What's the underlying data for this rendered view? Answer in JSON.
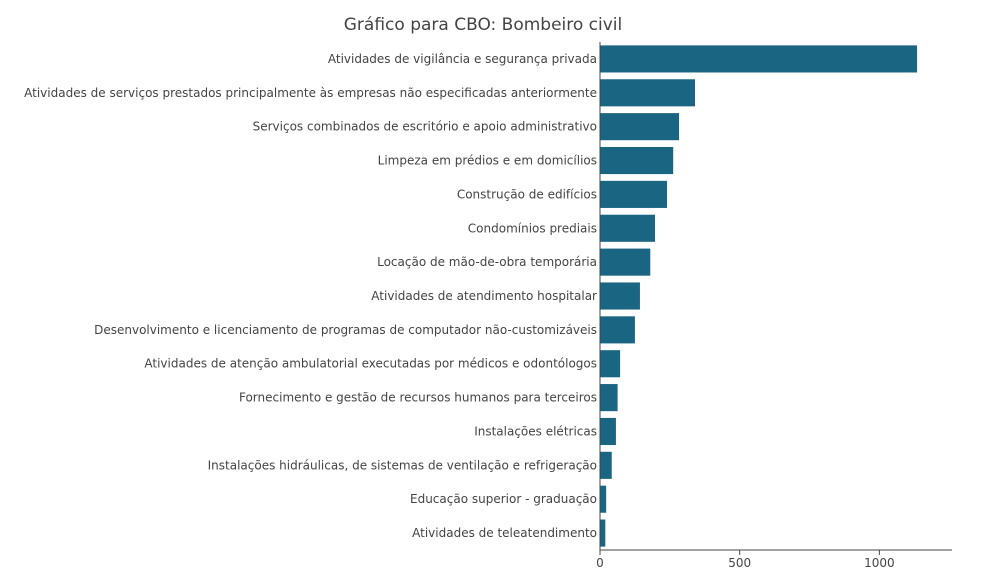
{
  "chart_data": {
    "type": "bar",
    "orientation": "horizontal",
    "title": "Gráfico para CBO: Bombeiro civil",
    "xlabel": "",
    "ylabel": "",
    "bar_color": "#1a6582",
    "xlim": [
      0,
      1260
    ],
    "xticks": [
      0,
      500,
      1000
    ],
    "xtick_labels": [
      "0",
      "500",
      "1000"
    ],
    "grid": false,
    "categories": [
      "Atividades de vigilância e segurança privada",
      "Atividades de serviços prestados principalmente às empresas não especificadas anteriormente",
      "Serviços combinados de escritório e apoio administrativo",
      "Limpeza em prédios e em domicílios",
      "Construção de edifícios",
      "Condomínios prediais",
      "Locação de mão-de-obra temporária",
      "Atividades de atendimento hospitalar",
      "Desenvolvimento e licenciamento de programas de computador não-customizáveis",
      "Atividades de atenção ambulatorial executadas por médicos e odontólogos",
      "Fornecimento e gestão de recursos humanos para terceiros",
      "Instalações elétricas",
      "Instalações hidráulicas, de sistemas de ventilação e refrigeração",
      "Educação superior - graduação",
      "Atividades de teleatendimento"
    ],
    "values": [
      1135,
      340,
      283,
      262,
      240,
      197,
      180,
      143,
      125,
      72,
      63,
      57,
      42,
      22,
      19
    ]
  }
}
